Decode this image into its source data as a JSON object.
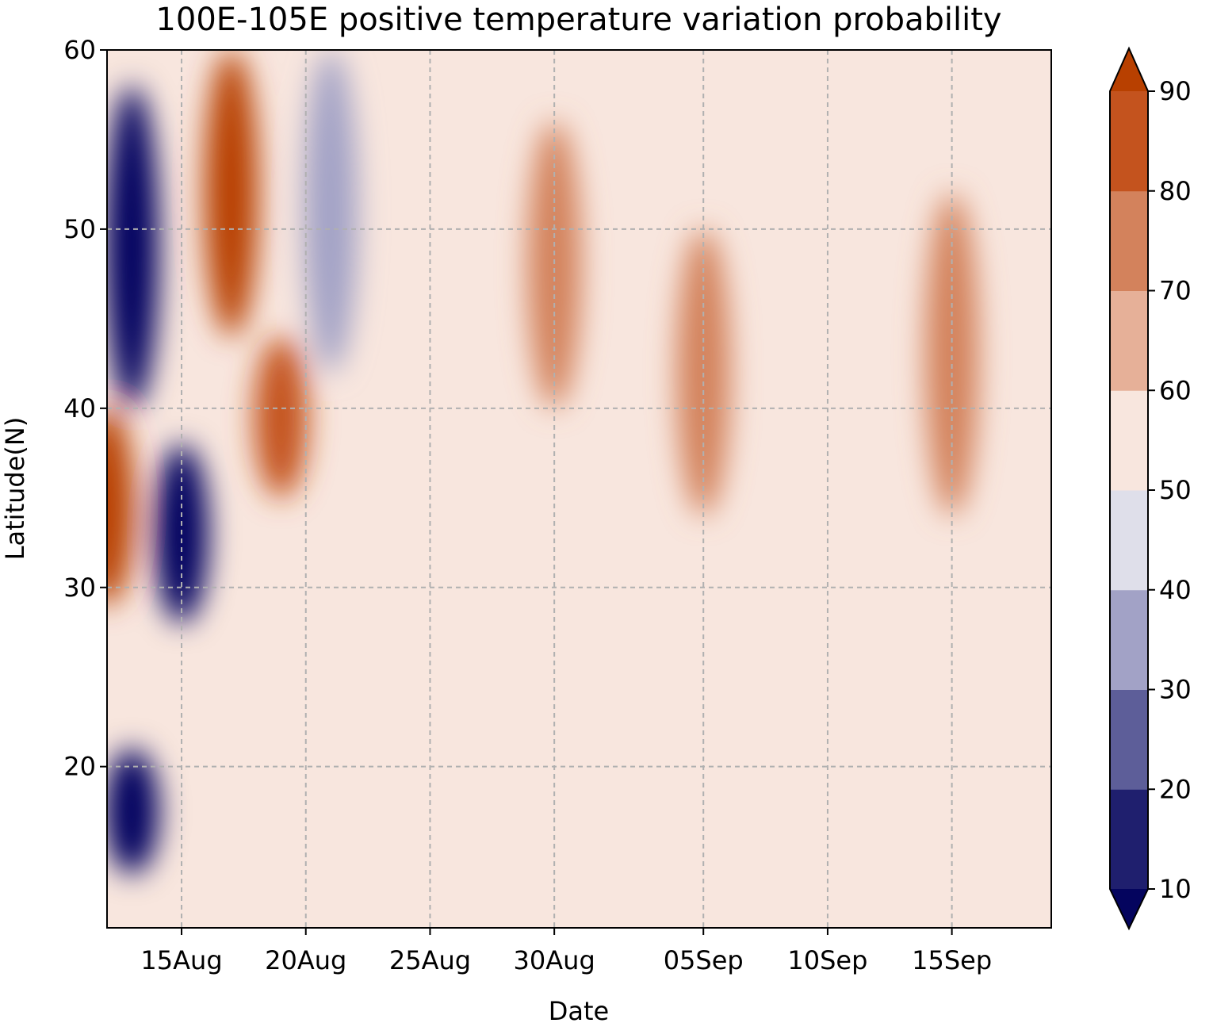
{
  "chart_data": {
    "type": "heatmap",
    "title": "100E-105E positive temperature variation probability",
    "xlabel": "Date",
    "ylabel": "Latitude(N)",
    "x_ticks": [
      "15Aug",
      "20Aug",
      "25Aug",
      "30Aug",
      "05Sep",
      "10Sep",
      "15Sep"
    ],
    "x_range": [
      "12Aug",
      "19Sep"
    ],
    "y_ticks": [
      20,
      30,
      40,
      50,
      60
    ],
    "ylim": [
      11,
      60
    ],
    "grid": true,
    "colorbar": {
      "levels": [
        10,
        20,
        30,
        40,
        50,
        60,
        70,
        80,
        90
      ],
      "tick_labels": [
        "10",
        "20",
        "30",
        "40",
        "50",
        "60",
        "70",
        "80",
        "90"
      ],
      "extend": "both",
      "colors": [
        "#04045e",
        "#1f1f6e",
        "#5d5e99",
        "#a2a2c6",
        "#dfdfea",
        "#f8e6de",
        "#e6b098",
        "#d3825c",
        "#c4531e",
        "#b84000"
      ]
    },
    "features": [
      {
        "date": "13Aug",
        "lat_range": [
          40,
          58
        ],
        "value_range": "<20"
      },
      {
        "date": "12Aug",
        "lat_range": [
          29,
          40
        ],
        "value_range": ">80"
      },
      {
        "date": "15Aug",
        "lat_range": [
          28,
          38
        ],
        "value_range": "<20"
      },
      {
        "date": "17Aug",
        "lat_range": [
          44,
          60
        ],
        "value_range": ">80"
      },
      {
        "date": "19Aug",
        "lat_range": [
          35,
          44
        ],
        "value_range": "70-90"
      },
      {
        "date": "13Aug",
        "lat_range": [
          14,
          21
        ],
        "value_range": "<20"
      },
      {
        "date": "21Aug",
        "lat_range": [
          42,
          60
        ],
        "value_range": "20-40"
      },
      {
        "date": "30Aug",
        "lat_range": [
          40,
          56
        ],
        "value_range": "60-80"
      },
      {
        "date": "15Sep",
        "lat_range": [
          34,
          52
        ],
        "value_range": "60-90"
      },
      {
        "date": "05Sep",
        "lat_range": [
          34,
          50
        ],
        "value_range": "60-80"
      }
    ]
  }
}
